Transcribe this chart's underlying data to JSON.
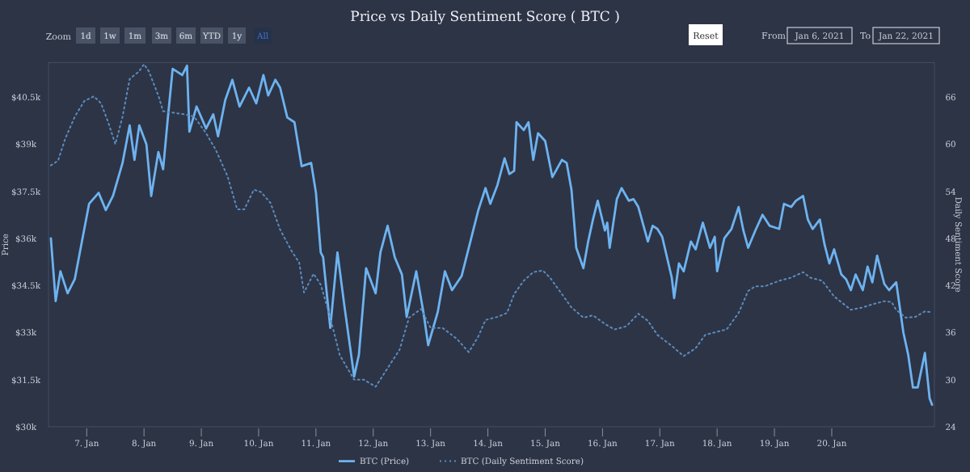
{
  "chart_data": {
    "type": "line",
    "title": "Price vs Daily Sentiment Score ( BTC )",
    "ylabel": "Price",
    "y2label": "Daily Sentiment Score",
    "annotations": [
      "Zoom",
      "1d",
      "1w",
      "1m",
      "3m",
      "6m",
      "YTD",
      "1y",
      "All",
      "Reset",
      "From",
      "Jan 6, 2021",
      "To",
      "Jan 22, 2021"
    ],
    "xlim": [
      "2021-01-06T08:00",
      "2021-01-21T19:00"
    ],
    "xticks": [
      {
        "value": "2021-01-07",
        "label": "7. Jan"
      },
      {
        "value": "2021-01-08",
        "label": "8. Jan"
      },
      {
        "value": "2021-01-09",
        "label": "9. Jan"
      },
      {
        "value": "2021-01-10",
        "label": "10. Jan"
      },
      {
        "value": "2021-01-11",
        "label": "11. Jan"
      },
      {
        "value": "2021-01-12",
        "label": "12. Jan"
      },
      {
        "value": "2021-01-13",
        "label": "13. Jan"
      },
      {
        "value": "2021-01-14",
        "label": "14. Jan"
      },
      {
        "value": "2021-01-15",
        "label": "15. Jan"
      },
      {
        "value": "2021-01-16",
        "label": "16. Jan"
      },
      {
        "value": "2021-01-17",
        "label": "17. Jan"
      },
      {
        "value": "2021-01-18",
        "label": "18. Jan"
      },
      {
        "value": "2021-01-19",
        "label": "19. Jan"
      },
      {
        "value": "2021-01-20",
        "label": "20. Jan"
      }
    ],
    "ylim": [
      30,
      41.6
    ],
    "yticks": [
      {
        "value": 30,
        "label": "$30k"
      },
      {
        "value": 31.5,
        "label": "$31.5k"
      },
      {
        "value": 33,
        "label": "$33k"
      },
      {
        "value": 34.5,
        "label": "$34.5k"
      },
      {
        "value": 36,
        "label": "$36k"
      },
      {
        "value": 37.5,
        "label": "$37.5k"
      },
      {
        "value": 39,
        "label": "$39k"
      },
      {
        "value": 40.5,
        "label": "$40.5k"
      }
    ],
    "y2lim": [
      24,
      70.4
    ],
    "y2ticks": [
      24,
      30,
      36,
      42,
      48,
      54,
      60,
      66
    ],
    "grid": false,
    "legend": "bottom",
    "marker": "none",
    "series": [
      {
        "name": "BTC (Price)",
        "color": "#6db3f0",
        "line_style": "solid",
        "x": [
          "2021-01-06T09:00",
          "2021-01-06T11:00",
          "2021-01-06T13:00",
          "2021-01-06T16:00",
          "2021-01-06T19:00",
          "2021-01-06T22:00",
          "2021-01-07T01:00",
          "2021-01-07T05:00",
          "2021-01-07T08:00",
          "2021-01-07T11:00",
          "2021-01-07T15:00",
          "2021-01-07T18:00",
          "2021-01-07T20:00",
          "2021-01-07T22:00",
          "2021-01-08T01:00",
          "2021-01-08T03:00",
          "2021-01-08T06:00",
          "2021-01-08T08:00",
          "2021-01-08T10:00",
          "2021-01-08T12:00",
          "2021-01-08T16:00",
          "2021-01-08T18:00",
          "2021-01-08T19:00",
          "2021-01-08T22:00",
          "2021-01-09T02:00",
          "2021-01-09T05:00",
          "2021-01-09T07:00",
          "2021-01-09T10:00",
          "2021-01-09T13:00",
          "2021-01-09T16:00",
          "2021-01-09T20:00",
          "2021-01-09T23:00",
          "2021-01-10T02:00",
          "2021-01-10T04:00",
          "2021-01-10T07:00",
          "2021-01-10T09:00",
          "2021-01-10T12:00",
          "2021-01-10T15:00",
          "2021-01-10T18:00",
          "2021-01-10T22:00",
          "2021-01-11T00:00",
          "2021-01-11T02:00",
          "2021-01-11T03:00",
          "2021-01-11T06:00",
          "2021-01-11T09:00",
          "2021-01-11T12:00",
          "2021-01-11T16:00",
          "2021-01-11T18:00",
          "2021-01-11T21:00",
          "2021-01-12T01:00",
          "2021-01-12T03:00",
          "2021-01-12T06:00",
          "2021-01-12T09:00",
          "2021-01-12T12:00",
          "2021-01-12T14:00",
          "2021-01-12T18:00",
          "2021-01-12T21:00",
          "2021-01-12T23:00",
          "2021-01-13T03:00",
          "2021-01-13T06:00",
          "2021-01-13T09:00",
          "2021-01-13T13:00",
          "2021-01-13T16:00",
          "2021-01-13T20:00",
          "2021-01-13T23:00",
          "2021-01-14T01:00",
          "2021-01-14T04:00",
          "2021-01-14T07:00",
          "2021-01-14T09:00",
          "2021-01-14T11:00",
          "2021-01-14T12:00",
          "2021-01-14T15:00",
          "2021-01-14T17:00",
          "2021-01-14T19:00",
          "2021-01-14T21:00",
          "2021-01-15T00:00",
          "2021-01-15T03:00",
          "2021-01-15T07:00",
          "2021-01-15T09:00",
          "2021-01-15T11:00",
          "2021-01-15T13:00",
          "2021-01-15T16:00",
          "2021-01-15T18:00",
          "2021-01-15T20:00",
          "2021-01-15T22:00",
          "2021-01-16T01:00",
          "2021-01-16T02:00",
          "2021-01-16T03:00",
          "2021-01-16T06:00",
          "2021-01-16T08:00",
          "2021-01-16T11:00",
          "2021-01-16T13:00",
          "2021-01-16T15:00",
          "2021-01-16T19:00",
          "2021-01-16T21:00",
          "2021-01-16T23:00",
          "2021-01-17T01:00",
          "2021-01-17T05:00",
          "2021-01-17T06:00",
          "2021-01-17T08:00",
          "2021-01-17T10:00",
          "2021-01-17T13:00",
          "2021-01-17T15:00",
          "2021-01-17T18:00",
          "2021-01-17T21:00",
          "2021-01-17T23:00",
          "2021-01-18T00:00",
          "2021-01-18T03:00",
          "2021-01-18T06:00",
          "2021-01-18T09:00",
          "2021-01-18T11:00",
          "2021-01-18T13:00",
          "2021-01-18T16:00",
          "2021-01-18T19:00",
          "2021-01-18T22:00",
          "2021-01-19T02:00",
          "2021-01-19T04:00",
          "2021-01-19T07:00",
          "2021-01-19T09:00",
          "2021-01-19T12:00",
          "2021-01-19T14:00",
          "2021-01-19T16:00",
          "2021-01-19T19:00",
          "2021-01-19T21:00",
          "2021-01-19T23:00",
          "2021-01-20T01:00",
          "2021-01-20T04:00",
          "2021-01-20T06:00",
          "2021-01-20T08:00",
          "2021-01-20T10:00",
          "2021-01-20T13:00",
          "2021-01-20T15:00",
          "2021-01-20T17:00",
          "2021-01-20T19:00",
          "2021-01-20T22:00",
          "2021-01-21T00:00",
          "2021-01-21T03:00",
          "2021-01-21T06:00",
          "2021-01-21T08:00",
          "2021-01-21T10:00",
          "2021-01-21T12:00",
          "2021-01-21T15:00",
          "2021-01-21T17:00",
          "2021-01-21T18:00"
        ],
        "values": [
          36.0,
          34.0,
          34.95,
          34.25,
          34.7,
          35.9,
          37.1,
          37.45,
          36.9,
          37.35,
          38.4,
          39.6,
          38.5,
          39.6,
          39.0,
          37.35,
          38.75,
          38.2,
          39.85,
          41.4,
          41.2,
          41.5,
          39.4,
          40.2,
          39.5,
          39.95,
          39.25,
          40.4,
          41.05,
          40.2,
          40.8,
          40.3,
          41.2,
          40.55,
          41.05,
          40.8,
          39.85,
          39.7,
          38.3,
          38.4,
          37.45,
          35.55,
          35.4,
          33.15,
          35.55,
          33.8,
          31.6,
          32.3,
          35.05,
          34.25,
          35.55,
          36.4,
          35.4,
          34.85,
          33.5,
          34.95,
          33.65,
          32.6,
          33.65,
          34.95,
          34.35,
          34.8,
          35.7,
          36.9,
          37.6,
          37.1,
          37.7,
          38.55,
          38.05,
          38.15,
          39.7,
          39.45,
          39.7,
          38.5,
          39.35,
          39.1,
          37.95,
          38.5,
          38.4,
          37.55,
          35.7,
          35.05,
          35.9,
          36.6,
          37.2,
          36.25,
          36.5,
          35.7,
          37.25,
          37.6,
          37.2,
          37.25,
          37.0,
          35.9,
          36.4,
          36.3,
          36.05,
          34.75,
          34.1,
          35.2,
          34.95,
          35.9,
          35.65,
          36.5,
          35.7,
          36.05,
          34.95,
          36.0,
          36.3,
          37.0,
          36.25,
          35.7,
          36.25,
          36.75,
          36.4,
          36.3,
          37.1,
          37.0,
          37.2,
          37.35,
          36.6,
          36.3,
          36.6,
          35.8,
          35.2,
          35.65,
          34.85,
          34.7,
          34.35,
          34.85,
          34.35,
          35.1,
          34.6,
          35.45,
          34.55,
          34.35,
          34.6,
          33.0,
          32.3,
          31.25,
          31.25,
          32.35,
          30.9,
          30.7
        ]
      },
      {
        "name": "BTC (Daily Sentiment Score)",
        "color": "#5b8cbd",
        "line_style": "dotted",
        "axis": "y2",
        "x": [
          "2021-01-06T09:00",
          "2021-01-06T12:00",
          "2021-01-06T15:00",
          "2021-01-06T19:00",
          "2021-01-06T23:00",
          "2021-01-07T03:00",
          "2021-01-07T06:00",
          "2021-01-07T09:00",
          "2021-01-07T12:00",
          "2021-01-07T15:00",
          "2021-01-07T18:00",
          "2021-01-07T22:00",
          "2021-01-08T00:00",
          "2021-01-08T02:00",
          "2021-01-08T06:00",
          "2021-01-08T08:00",
          "2021-01-08T17:00",
          "2021-01-08T21:00",
          "2021-01-09T02:00",
          "2021-01-09T06:00",
          "2021-01-09T11:00",
          "2021-01-09T15:00",
          "2021-01-09T18:00",
          "2021-01-09T22:00",
          "2021-01-10T01:00",
          "2021-01-10T05:00",
          "2021-01-10T09:00",
          "2021-01-10T14:00",
          "2021-01-10T17:00",
          "2021-01-10T19:00",
          "2021-01-10T23:00",
          "2021-01-11T02:00",
          "2021-01-11T06:00",
          "2021-01-11T10:00",
          "2021-01-11T16:00",
          "2021-01-11T20:00",
          "2021-01-12T01:00",
          "2021-01-12T05:00",
          "2021-01-12T11:00",
          "2021-01-12T15:00",
          "2021-01-12T20:00",
          "2021-01-13T00:00",
          "2021-01-13T05:00",
          "2021-01-13T11:00",
          "2021-01-13T16:00",
          "2021-01-13T20:00",
          "2021-01-13T23:00",
          "2021-01-14T04:00",
          "2021-01-14T08:00",
          "2021-01-14T11:00",
          "2021-01-14T15:00",
          "2021-01-14T19:00",
          "2021-01-14T23:00",
          "2021-01-15T02:00",
          "2021-01-15T07:00",
          "2021-01-15T11:00",
          "2021-01-15T16:00",
          "2021-01-15T20:00",
          "2021-01-16T01:00",
          "2021-01-16T05:00",
          "2021-01-16T10:00",
          "2021-01-16T15:00",
          "2021-01-16T19:00",
          "2021-01-16T23:00",
          "2021-01-17T05:00",
          "2021-01-17T10:00",
          "2021-01-17T15:00",
          "2021-01-17T19:00",
          "2021-01-18T00:00",
          "2021-01-18T04:00",
          "2021-01-18T09:00",
          "2021-01-18T13:00",
          "2021-01-18T16:00",
          "2021-01-18T20:00",
          "2021-01-19T02:00",
          "2021-01-19T07:00",
          "2021-01-19T12:00",
          "2021-01-19T15:00",
          "2021-01-19T20:00",
          "2021-01-20T01:00",
          "2021-01-20T08:00",
          "2021-01-20T13:00",
          "2021-01-20T17:00",
          "2021-01-20T22:00",
          "2021-01-21T01:00",
          "2021-01-21T03:00",
          "2021-01-21T07:00",
          "2021-01-21T11:00",
          "2021-01-21T15:00",
          "2021-01-21T18:00"
        ],
        "values": [
          57.3,
          57.9,
          60.7,
          63.5,
          65.5,
          66.1,
          65.2,
          62.8,
          60.0,
          63.5,
          68.3,
          69.3,
          70.2,
          69.3,
          66.2,
          64.2,
          63.8,
          63.5,
          61.4,
          59.3,
          55.9,
          51.7,
          51.7,
          54.2,
          53.9,
          52.5,
          49.1,
          46.3,
          44.9,
          41.1,
          43.5,
          42.1,
          37.9,
          33.1,
          30.0,
          30.0,
          29.1,
          31.0,
          33.8,
          37.9,
          39.0,
          36.6,
          36.6,
          35.2,
          33.5,
          35.5,
          37.6,
          38.0,
          38.5,
          40.9,
          42.6,
          43.7,
          43.9,
          43.0,
          40.9,
          39.2,
          37.9,
          38.2,
          37.1,
          36.4,
          36.8,
          38.4,
          37.5,
          35.7,
          34.3,
          33.0,
          34.0,
          35.7,
          36.1,
          36.4,
          38.5,
          41.3,
          41.9,
          41.9,
          42.6,
          43.0,
          43.7,
          43.0,
          42.6,
          40.6,
          38.9,
          39.2,
          39.6,
          40.0,
          39.9,
          38.9,
          37.9,
          38.0,
          38.7,
          38.6
        ]
      }
    ]
  }
}
